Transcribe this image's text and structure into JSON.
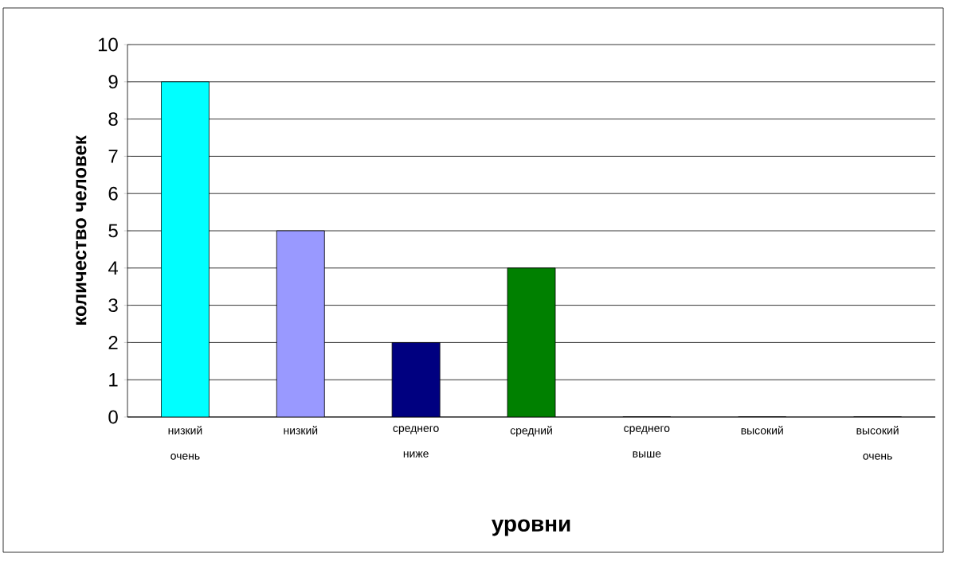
{
  "chart_data": {
    "type": "bar",
    "xlabel": "уровни",
    "ylabel": "количество человек",
    "categories": [
      "низкий очень",
      "низкий",
      "среднего ниже",
      "средний",
      "среднего выше",
      "высокий",
      "высокий очень"
    ],
    "values": [
      9,
      5,
      2,
      4,
      0,
      0,
      0
    ],
    "colors": [
      "#00ffff",
      "#9999ff",
      "#000080",
      "#008000",
      "#800080",
      "#ffff00",
      "#00ffff"
    ],
    "ylim": [
      0,
      10
    ],
    "yticks": [
      0,
      1,
      2,
      3,
      4,
      5,
      6,
      7,
      8,
      9,
      10
    ],
    "grid": "y"
  }
}
